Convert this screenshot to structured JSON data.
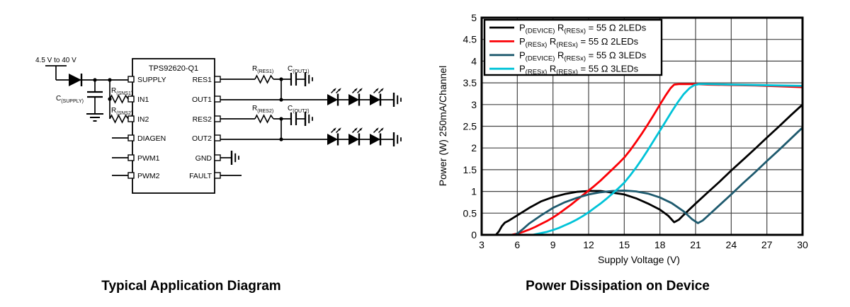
{
  "figure": {
    "left_caption": "Typical Application Diagram",
    "right_caption": "Power Dissipation on Device"
  },
  "circuit": {
    "ic_title": "TPS92620-Q1",
    "input_label": "4.5 V to 40 V",
    "left_pins": [
      "SUPPLY",
      "IN1",
      "IN2",
      "DIAGEN",
      "PWM1",
      "PWM2"
    ],
    "right_pins": [
      "RES1",
      "OUT1",
      "RES2",
      "OUT2",
      "GND",
      "FAULT"
    ],
    "labels": {
      "c_supply": {
        "main": "C",
        "sub": "(SUPPLY)"
      },
      "r_sns1": {
        "main": "R",
        "sub": "(SNS1)"
      },
      "r_sns2": {
        "main": "R",
        "sub": "(SNS2)"
      },
      "r_res1": {
        "main": "R",
        "sub": "(RES1)"
      },
      "c_out1": {
        "main": "C",
        "sub": "(OUT1)"
      },
      "r_res2": {
        "main": "R",
        "sub": "(RES2)"
      },
      "c_out2": {
        "main": "C",
        "sub": "(OUT2)"
      }
    }
  },
  "chart_data": {
    "type": "line",
    "title": "Power Dissipation on Device",
    "xlabel": "Supply Voltage (V)",
    "ylabel": "Power (W) 250mA/Channel",
    "xlim": [
      3,
      30
    ],
    "ylim": [
      0,
      5
    ],
    "xticks": [
      "3",
      "6",
      "9",
      "12",
      "15",
      "18",
      "21",
      "24",
      "27",
      "30"
    ],
    "yticks": [
      "0",
      "0.5",
      "1",
      "1.5",
      "2",
      "2.5",
      "3",
      "3.5",
      "4",
      "4.5",
      "5"
    ],
    "grid": true,
    "grid_color": "#454545",
    "legend_position": "top-left",
    "series": [
      {
        "name": "P(DEVICE) R(RESx) = 55 Ω 2LEDs",
        "color": "#000000",
        "label_parts": [
          {
            "t": "P",
            "s": 0
          },
          {
            "t": "(DEVICE)",
            "s": 1
          },
          {
            "t": " R",
            "s": 0
          },
          {
            "t": "(RESx)",
            "s": 1
          },
          {
            "t": " = 55 Ω 2LEDs",
            "s": 0
          }
        ],
        "points": [
          [
            4.2,
            0
          ],
          [
            4.45,
            0.08
          ],
          [
            4.7,
            0.2
          ],
          [
            4.95,
            0.28
          ],
          [
            5.3,
            0.33
          ],
          [
            6,
            0.45
          ],
          [
            7,
            0.62
          ],
          [
            8,
            0.77
          ],
          [
            9,
            0.87
          ],
          [
            10,
            0.94
          ],
          [
            11,
            0.99
          ],
          [
            12,
            1.01
          ],
          [
            13,
            1.01
          ],
          [
            14,
            0.97
          ],
          [
            15,
            0.93
          ],
          [
            16,
            0.84
          ],
          [
            17,
            0.72
          ],
          [
            18,
            0.58
          ],
          [
            18.7,
            0.44
          ],
          [
            19.2,
            0.29
          ],
          [
            19.6,
            0.35
          ],
          [
            20,
            0.46
          ],
          [
            21,
            0.72
          ],
          [
            22,
            0.97
          ],
          [
            23,
            1.22
          ],
          [
            24,
            1.48
          ],
          [
            25,
            1.73
          ],
          [
            26,
            1.98
          ],
          [
            27,
            2.24
          ],
          [
            28,
            2.49
          ],
          [
            29,
            2.75
          ],
          [
            30,
            3.0
          ]
        ]
      },
      {
        "name": "P(RESx) R(RESx) = 55 Ω 2LEDs",
        "color": "#fb0006",
        "label_parts": [
          {
            "t": "P",
            "s": 0
          },
          {
            "t": "(RESx)",
            "s": 1
          },
          {
            "t": " R",
            "s": 0
          },
          {
            "t": "(RESx)",
            "s": 1
          },
          {
            "t": " = 55 Ω 2LEDs",
            "s": 0
          }
        ],
        "points": [
          [
            5.5,
            0
          ],
          [
            6,
            0.03
          ],
          [
            6.5,
            0.07
          ],
          [
            7,
            0.12
          ],
          [
            7.5,
            0.18
          ],
          [
            8,
            0.25
          ],
          [
            8.5,
            0.32
          ],
          [
            9,
            0.4
          ],
          [
            9.5,
            0.49
          ],
          [
            10,
            0.59
          ],
          [
            10.5,
            0.69
          ],
          [
            11,
            0.8
          ],
          [
            11.5,
            0.91
          ],
          [
            12,
            1.02
          ],
          [
            12.5,
            1.13
          ],
          [
            13,
            1.25
          ],
          [
            13.5,
            1.38
          ],
          [
            14,
            1.51
          ],
          [
            14.5,
            1.64
          ],
          [
            15,
            1.78
          ],
          [
            15.5,
            1.95
          ],
          [
            16,
            2.14
          ],
          [
            16.5,
            2.34
          ],
          [
            17,
            2.55
          ],
          [
            17.5,
            2.77
          ],
          [
            18,
            3.0
          ],
          [
            18.5,
            3.22
          ],
          [
            18.9,
            3.38
          ],
          [
            19.2,
            3.46
          ],
          [
            19.6,
            3.47
          ],
          [
            21,
            3.47
          ],
          [
            22,
            3.46
          ],
          [
            24,
            3.45
          ],
          [
            26,
            3.44
          ],
          [
            28,
            3.42
          ],
          [
            30,
            3.4
          ]
        ]
      },
      {
        "name": "P(DEVICE) R(RESx) = 55 Ω 3LEDs",
        "color": "#1e5a6e",
        "label_parts": [
          {
            "t": "P",
            "s": 0
          },
          {
            "t": "(DEVICE)",
            "s": 1
          },
          {
            "t": " R",
            "s": 0
          },
          {
            "t": "(RESx)",
            "s": 1
          },
          {
            "t": " = 55 Ω 3LEDs",
            "s": 0
          }
        ],
        "points": [
          [
            5.8,
            0
          ],
          [
            6.1,
            0.05
          ],
          [
            6.5,
            0.14
          ],
          [
            7,
            0.26
          ],
          [
            8,
            0.45
          ],
          [
            9,
            0.62
          ],
          [
            10,
            0.75
          ],
          [
            11,
            0.85
          ],
          [
            12,
            0.93
          ],
          [
            13,
            0.98
          ],
          [
            14,
            1.01
          ],
          [
            15,
            1.02
          ],
          [
            16,
            1.0
          ],
          [
            17,
            0.95
          ],
          [
            18,
            0.86
          ],
          [
            19,
            0.73
          ],
          [
            20,
            0.54
          ],
          [
            20.7,
            0.36
          ],
          [
            21.2,
            0.27
          ],
          [
            21.6,
            0.33
          ],
          [
            22,
            0.43
          ],
          [
            23,
            0.68
          ],
          [
            24,
            0.93
          ],
          [
            25,
            1.19
          ],
          [
            26,
            1.44
          ],
          [
            27,
            1.7
          ],
          [
            28,
            1.95
          ],
          [
            29,
            2.21
          ],
          [
            30,
            2.47
          ]
        ]
      },
      {
        "name": "P(RESx) R(RESx) = 55 Ω 3LEDs",
        "color": "#00c3d8",
        "label_parts": [
          {
            "t": "P",
            "s": 0
          },
          {
            "t": "(RESx)",
            "s": 1
          },
          {
            "t": " R",
            "s": 0
          },
          {
            "t": "(RESx)",
            "s": 1
          },
          {
            "t": " = 55 Ω 3LEDs",
            "s": 0
          }
        ],
        "points": [
          [
            7.3,
            0
          ],
          [
            8,
            0.04
          ],
          [
            8.5,
            0.07
          ],
          [
            9,
            0.11
          ],
          [
            9.5,
            0.16
          ],
          [
            10,
            0.22
          ],
          [
            10.5,
            0.28
          ],
          [
            11,
            0.35
          ],
          [
            11.5,
            0.43
          ],
          [
            12,
            0.52
          ],
          [
            12.5,
            0.62
          ],
          [
            13,
            0.72
          ],
          [
            13.5,
            0.83
          ],
          [
            14,
            0.95
          ],
          [
            14.5,
            1.07
          ],
          [
            15,
            1.2
          ],
          [
            15.5,
            1.37
          ],
          [
            16,
            1.55
          ],
          [
            16.5,
            1.75
          ],
          [
            17,
            1.96
          ],
          [
            17.5,
            2.18
          ],
          [
            18,
            2.4
          ],
          [
            18.5,
            2.62
          ],
          [
            19,
            2.84
          ],
          [
            19.5,
            3.05
          ],
          [
            20,
            3.24
          ],
          [
            20.5,
            3.38
          ],
          [
            20.9,
            3.45
          ],
          [
            21.3,
            3.47
          ],
          [
            22,
            3.47
          ],
          [
            24,
            3.46
          ],
          [
            26,
            3.45
          ],
          [
            28,
            3.44
          ],
          [
            30,
            3.43
          ]
        ]
      }
    ]
  }
}
